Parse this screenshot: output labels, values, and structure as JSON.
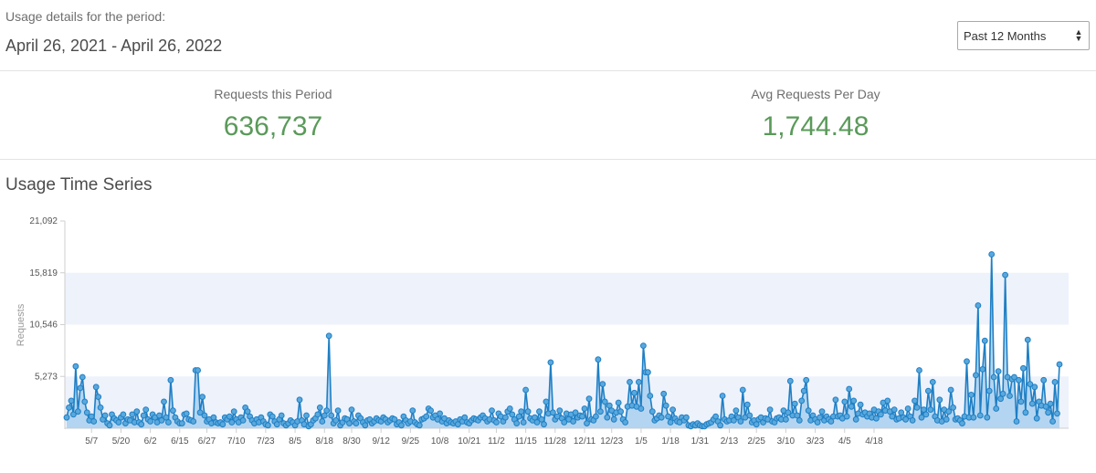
{
  "header": {
    "usage_label": "Usage details for the period:",
    "date_range": "April 26, 2021 - April 26, 2022",
    "period_select": {
      "selected": "Past 12 Months"
    }
  },
  "stats": {
    "requests_label": "Requests this Period",
    "requests_value": "636,737",
    "avg_label": "Avg Requests Per Day",
    "avg_value": "1,744.48"
  },
  "colors": {
    "accent_green": "#5a9a5a",
    "series_line": "#1f7fc4",
    "series_fill": "#a9d0ee",
    "band": "#eef2fb"
  },
  "chart_data": {
    "type": "area",
    "title": "Usage Time Series",
    "ylabel": "Requests",
    "xlabel": "",
    "ylim": [
      0,
      21092
    ],
    "y_ticks": [
      "21,092",
      "15,819",
      "10,546",
      "5,273"
    ],
    "y_tick_values": [
      21092,
      15819,
      10546,
      5273
    ],
    "x_tick_labels": [
      "5/7",
      "5/20",
      "6/2",
      "6/15",
      "6/27",
      "7/10",
      "7/23",
      "8/5",
      "8/18",
      "8/30",
      "9/12",
      "9/25",
      "10/8",
      "10/21",
      "11/2",
      "11/15",
      "11/28",
      "12/11",
      "12/23",
      "1/5",
      "1/18",
      "1/31",
      "2/13",
      "2/25",
      "3/10",
      "3/23",
      "4/5",
      "4/18"
    ],
    "x_tick_days": [
      11,
      24,
      37,
      50,
      62,
      75,
      88,
      101,
      114,
      126,
      139,
      152,
      165,
      178,
      190,
      203,
      216,
      229,
      241,
      254,
      267,
      280,
      293,
      305,
      318,
      331,
      344,
      357
    ],
    "grid_bands": true,
    "series": [
      {
        "values": [
          1100,
          2100,
          2800,
          1400,
          6300,
          1700,
          4100,
          5200,
          2700,
          1600,
          800,
          1200,
          700,
          4200,
          3200,
          2100,
          900,
          1300,
          500,
          300,
          1400,
          1000,
          800,
          600,
          1100,
          1400,
          500,
          900,
          800,
          1400,
          600,
          1700,
          600,
          400,
          1300,
          1900,
          900,
          700,
          1400,
          1100,
          600,
          1300,
          800,
          2700,
          1100,
          600,
          4900,
          1800,
          1100,
          700,
          500,
          500,
          1400,
          1500,
          900,
          800,
          700,
          5900,
          5900,
          1600,
          3200,
          1300,
          700,
          900,
          500,
          1100,
          600,
          500,
          600,
          400,
          1100,
          900,
          1200,
          600,
          1700,
          900,
          600,
          1100,
          800,
          2100,
          1700,
          1200,
          800,
          500,
          900,
          600,
          1100,
          700,
          400,
          300,
          1400,
          1200,
          700,
          400,
          900,
          1300,
          500,
          300,
          500,
          800,
          600,
          300,
          700,
          2900,
          800,
          400,
          1300,
          200,
          400,
          800,
          1000,
          1400,
          2100,
          700,
          1300,
          1800,
          9400,
          1300,
          500,
          800,
          1800,
          300,
          600,
          1000,
          900,
          500,
          1900,
          700,
          500,
          1300,
          1000,
          600,
          300,
          800,
          900,
          500,
          700,
          1000,
          800,
          700,
          1100,
          900,
          600,
          800,
          1000,
          900,
          400,
          600,
          300,
          1200,
          800,
          500,
          700,
          1800,
          600,
          400,
          300,
          900,
          1000,
          1200,
          2000,
          1800,
          1100,
          1300,
          900,
          1500,
          700,
          1000,
          500,
          800,
          600,
          500,
          700,
          400,
          900,
          700,
          1100,
          600,
          500,
          800,
          1000,
          900,
          800,
          1100,
          1300,
          1000,
          700,
          900,
          1800,
          800,
          600,
          1500,
          1200,
          700,
          1100,
          1700,
          2000,
          1400,
          900,
          500,
          1200,
          1700,
          600,
          3900,
          1700,
          1000,
          800,
          1100,
          600,
          1700,
          900,
          400,
          2700,
          1500,
          6700,
          1600,
          900,
          1200,
          1800,
          1000,
          600,
          1500,
          900,
          1400,
          700,
          1600,
          1100,
          1300,
          1200,
          2000,
          500,
          3000,
          900,
          800,
          1200,
          7000,
          1700,
          4500,
          2700,
          1100,
          2300,
          1800,
          900,
          1600,
          2600,
          1700,
          900,
          600,
          2200,
          4700,
          2300,
          3600,
          2200,
          4700,
          2000,
          8400,
          5700,
          5700,
          3300,
          1700,
          800,
          1000,
          1300,
          1100,
          3500,
          2300,
          1200,
          600,
          1900,
          1000,
          700,
          600,
          1100,
          800,
          1100,
          300,
          200,
          400,
          300,
          500,
          300,
          200,
          200,
          400,
          500,
          600,
          900,
          1200,
          700,
          300,
          3300,
          900,
          700,
          800,
          1200,
          800,
          1800,
          1100,
          700,
          3900,
          1100,
          2400,
          1300,
          600,
          800,
          400,
          900,
          1100,
          600,
          1000,
          900,
          1900,
          700,
          600,
          1000,
          1100,
          900,
          1800,
          900,
          1600,
          4800,
          1300,
          2500,
          1300,
          800,
          2800,
          3800,
          4900,
          1800,
          800,
          1300,
          900,
          600,
          1100,
          1700,
          800,
          1200,
          900,
          700,
          1200,
          2900,
          1200,
          1300,
          1000,
          2700,
          1200,
          4000,
          2200,
          2800,
          900,
          1500,
          2400,
          1400,
          1600,
          1200,
          1500,
          1100,
          1900,
          1000,
          1700,
          1400,
          2600,
          1800,
          2800,
          1700,
          1200,
          1900,
          900,
          1000,
          1600,
          1100,
          900,
          2000,
          1200,
          800,
          2800,
          2100,
          5900,
          1100,
          1900,
          1400,
          3800,
          1900,
          4700,
          1200,
          800,
          2900,
          700,
          1900,
          900,
          1700,
          3900,
          2100,
          900,
          1000,
          800,
          500,
          1200,
          6800,
          1100,
          3400,
          1100,
          5400,
          12500,
          1300,
          6000,
          8900,
          1100,
          3800,
          17700,
          5200,
          2000,
          5800,
          3000,
          3500,
          15600,
          5200,
          3300,
          5000,
          5200,
          700,
          4900,
          2700,
          6100,
          1600,
          9000,
          4500,
          2500,
          4200,
          1000,
          2700,
          2300,
          4900,
          2200,
          1600,
          2500,
          700,
          4700,
          1500,
          6500
        ]
      }
    ]
  }
}
